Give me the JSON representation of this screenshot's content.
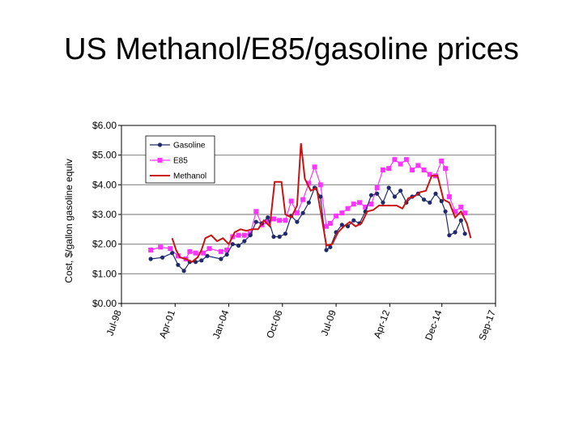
{
  "slide": {
    "title": "US Methanol/E85/gasoline prices"
  },
  "chart_data": {
    "type": "line",
    "ylabel": "Cost, $/gallon gasoline equiv",
    "ylim": [
      0,
      6
    ],
    "yticks": [
      "$0.00",
      "$1.00",
      "$2.00",
      "$3.00",
      "$4.00",
      "$5.00",
      "$6.00"
    ],
    "xlim": [
      1998.5,
      2017.67
    ],
    "xticks": [
      {
        "label": "Jul-98",
        "x": 1998.5
      },
      {
        "label": "Apr-01",
        "x": 2001.25
      },
      {
        "label": "Jan-04",
        "x": 2004.0
      },
      {
        "label": "Oct-06",
        "x": 2006.75
      },
      {
        "label": "Jul-09",
        "x": 2009.5
      },
      {
        "label": "Apr-12",
        "x": 2012.25
      },
      {
        "label": "Dec-14",
        "x": 2014.92
      },
      {
        "label": "Sep-17",
        "x": 2017.67
      }
    ],
    "grid": true,
    "legend": "top-left",
    "series": [
      {
        "name": "Gasoline",
        "color": "#1f2a6b",
        "marker": "circle",
        "points": [
          [
            2000.0,
            1.5
          ],
          [
            2000.6,
            1.55
          ],
          [
            2001.1,
            1.7
          ],
          [
            2001.4,
            1.3
          ],
          [
            2001.7,
            1.1
          ],
          [
            2002.0,
            1.4
          ],
          [
            2002.3,
            1.4
          ],
          [
            2002.6,
            1.45
          ],
          [
            2002.9,
            1.6
          ],
          [
            2003.6,
            1.5
          ],
          [
            2003.9,
            1.65
          ],
          [
            2004.2,
            2.0
          ],
          [
            2004.5,
            1.95
          ],
          [
            2004.8,
            2.1
          ],
          [
            2005.1,
            2.3
          ],
          [
            2005.4,
            2.75
          ],
          [
            2005.7,
            2.7
          ],
          [
            2006.0,
            2.9
          ],
          [
            2006.3,
            2.25
          ],
          [
            2006.6,
            2.25
          ],
          [
            2006.9,
            2.35
          ],
          [
            2007.2,
            2.95
          ],
          [
            2007.5,
            2.75
          ],
          [
            2007.8,
            3.05
          ],
          [
            2008.1,
            3.4
          ],
          [
            2008.4,
            3.9
          ],
          [
            2008.7,
            3.6
          ],
          [
            2009.0,
            1.8
          ],
          [
            2009.2,
            1.9
          ],
          [
            2009.5,
            2.4
          ],
          [
            2009.8,
            2.65
          ],
          [
            2010.1,
            2.6
          ],
          [
            2010.4,
            2.8
          ],
          [
            2010.7,
            2.7
          ],
          [
            2011.0,
            3.1
          ],
          [
            2011.3,
            3.65
          ],
          [
            2011.6,
            3.7
          ],
          [
            2011.9,
            3.4
          ],
          [
            2012.2,
            3.9
          ],
          [
            2012.5,
            3.6
          ],
          [
            2012.8,
            3.8
          ],
          [
            2013.1,
            3.4
          ],
          [
            2013.4,
            3.6
          ],
          [
            2013.7,
            3.7
          ],
          [
            2014.0,
            3.5
          ],
          [
            2014.3,
            3.4
          ],
          [
            2014.6,
            3.7
          ],
          [
            2014.9,
            3.45
          ],
          [
            2015.1,
            3.1
          ],
          [
            2015.3,
            2.3
          ],
          [
            2015.6,
            2.4
          ],
          [
            2015.9,
            2.8
          ],
          [
            2016.1,
            2.35
          ]
        ]
      },
      {
        "name": "E85",
        "color": "#ff33ff",
        "marker": "square",
        "points": [
          [
            2000.0,
            1.8
          ],
          [
            2000.5,
            1.9
          ],
          [
            2001.0,
            1.85
          ],
          [
            2001.4,
            1.6
          ],
          [
            2001.8,
            1.5
          ],
          [
            2002.0,
            1.75
          ],
          [
            2002.3,
            1.7
          ],
          [
            2002.7,
            1.7
          ],
          [
            2003.0,
            1.85
          ],
          [
            2003.6,
            1.75
          ],
          [
            2003.9,
            1.8
          ],
          [
            2004.2,
            2.25
          ],
          [
            2004.5,
            2.3
          ],
          [
            2004.8,
            2.3
          ],
          [
            2005.1,
            2.35
          ],
          [
            2005.4,
            3.1
          ],
          [
            2005.7,
            2.65
          ],
          [
            2006.0,
            2.75
          ],
          [
            2006.3,
            2.85
          ],
          [
            2006.6,
            2.8
          ],
          [
            2006.9,
            2.8
          ],
          [
            2007.2,
            3.45
          ],
          [
            2007.5,
            3.05
          ],
          [
            2007.8,
            3.5
          ],
          [
            2008.1,
            4.05
          ],
          [
            2008.4,
            4.6
          ],
          [
            2008.7,
            4.0
          ],
          [
            2009.0,
            2.6
          ],
          [
            2009.2,
            2.7
          ],
          [
            2009.5,
            2.95
          ],
          [
            2009.8,
            3.05
          ],
          [
            2010.1,
            3.2
          ],
          [
            2010.4,
            3.35
          ],
          [
            2010.7,
            3.4
          ],
          [
            2011.0,
            3.25
          ],
          [
            2011.3,
            3.35
          ],
          [
            2011.6,
            3.9
          ],
          [
            2011.9,
            4.5
          ],
          [
            2012.2,
            4.55
          ],
          [
            2012.5,
            4.85
          ],
          [
            2012.8,
            4.7
          ],
          [
            2013.1,
            4.85
          ],
          [
            2013.4,
            4.5
          ],
          [
            2013.7,
            4.65
          ],
          [
            2014.0,
            4.5
          ],
          [
            2014.3,
            4.35
          ],
          [
            2014.6,
            4.3
          ],
          [
            2014.9,
            4.8
          ],
          [
            2015.1,
            4.55
          ],
          [
            2015.3,
            3.6
          ],
          [
            2015.6,
            3.1
          ],
          [
            2015.9,
            3.25
          ],
          [
            2016.1,
            3.05
          ]
        ]
      },
      {
        "name": "Methanol",
        "color": "#cc1111",
        "marker": "none",
        "points": [
          [
            2001.1,
            2.2
          ],
          [
            2001.3,
            1.8
          ],
          [
            2001.5,
            1.55
          ],
          [
            2001.8,
            1.5
          ],
          [
            2002.1,
            1.4
          ],
          [
            2002.4,
            1.55
          ],
          [
            2002.6,
            1.8
          ],
          [
            2002.8,
            2.2
          ],
          [
            2003.1,
            2.3
          ],
          [
            2003.4,
            2.1
          ],
          [
            2003.7,
            2.2
          ],
          [
            2004.0,
            2.0
          ],
          [
            2004.3,
            2.4
          ],
          [
            2004.6,
            2.5
          ],
          [
            2004.9,
            2.45
          ],
          [
            2005.2,
            2.5
          ],
          [
            2005.5,
            2.5
          ],
          [
            2005.8,
            2.8
          ],
          [
            2006.1,
            2.6
          ],
          [
            2006.35,
            4.1
          ],
          [
            2006.7,
            4.1
          ],
          [
            2006.9,
            3.0
          ],
          [
            2007.2,
            2.9
          ],
          [
            2007.5,
            3.3
          ],
          [
            2007.7,
            5.4
          ],
          [
            2007.9,
            4.2
          ],
          [
            2008.2,
            3.8
          ],
          [
            2008.5,
            3.9
          ],
          [
            2008.8,
            2.75
          ],
          [
            2009.0,
            1.95
          ],
          [
            2009.3,
            2.0
          ],
          [
            2009.6,
            2.4
          ],
          [
            2009.9,
            2.6
          ],
          [
            2010.2,
            2.75
          ],
          [
            2010.5,
            2.6
          ],
          [
            2010.8,
            2.7
          ],
          [
            2011.1,
            3.1
          ],
          [
            2011.4,
            3.15
          ],
          [
            2011.7,
            3.3
          ],
          [
            2012.0,
            3.3
          ],
          [
            2012.3,
            3.3
          ],
          [
            2012.6,
            3.3
          ],
          [
            2012.9,
            3.2
          ],
          [
            2013.2,
            3.55
          ],
          [
            2013.5,
            3.6
          ],
          [
            2013.8,
            3.75
          ],
          [
            2014.1,
            3.8
          ],
          [
            2014.4,
            4.3
          ],
          [
            2014.7,
            4.3
          ],
          [
            2015.0,
            3.5
          ],
          [
            2015.3,
            3.4
          ],
          [
            2015.6,
            2.9
          ],
          [
            2015.9,
            3.1
          ],
          [
            2016.2,
            2.7
          ],
          [
            2016.4,
            2.2
          ]
        ]
      }
    ]
  }
}
